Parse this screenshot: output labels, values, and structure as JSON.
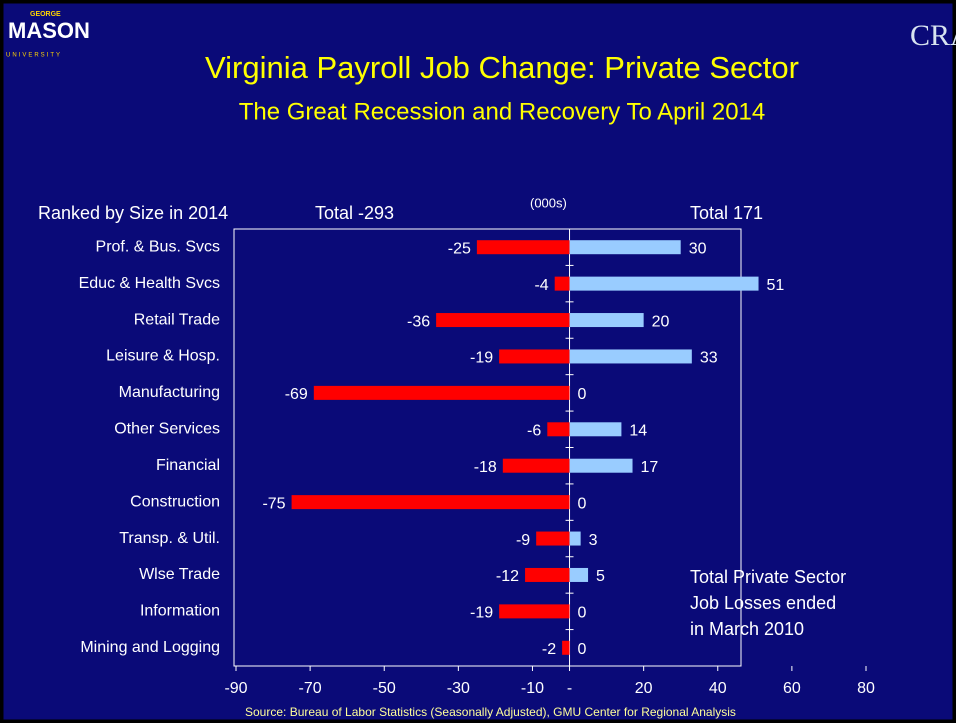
{
  "chart_data": {
    "type": "bar",
    "orientation": "horizontal",
    "title": "Virginia Payroll Job Change: Private Sector",
    "subtitle": "The Great Recession and Recovery To April 2014",
    "category_header": "Ranked by Size in 2014",
    "left_total": "Total -293",
    "unit": "(000s)",
    "right_total": "Total 171",
    "annotation": [
      "Total Private Sector",
      "Job Losses ended",
      "in March 2010"
    ],
    "source": "Source: Bureau of Labor Statistics (Seasonally Adjusted), GMU Center for Regional Analysis",
    "logo_left": [
      "GEORGE",
      "MASON",
      "UNIVERSITY"
    ],
    "logo_right": "CRA",
    "categories": [
      "Prof. & Bus. Svcs",
      "Educ & Health Svcs",
      "Retail Trade",
      "Leisure & Hosp.",
      "Manufacturing",
      "Other Services",
      "Financial",
      "Construction",
      "Transp. & Util.",
      "Wlse Trade",
      "Information",
      "Mining and Logging"
    ],
    "series": [
      {
        "color": "#ff0000",
        "values": [
          -25,
          -4,
          -36,
          -19,
          -69,
          -6,
          -18,
          -75,
          -9,
          -12,
          -19,
          -2
        ]
      },
      {
        "color": "#99ccff",
        "values": [
          30,
          51,
          20,
          33,
          0,
          14,
          17,
          0,
          3,
          5,
          0,
          0
        ]
      }
    ],
    "xlim": [
      -90,
      80
    ],
    "xticks": [
      -90,
      -70,
      -50,
      -30,
      -10,
      {
        "value": 0,
        "label": "-"
      },
      20,
      40,
      60,
      80
    ]
  }
}
